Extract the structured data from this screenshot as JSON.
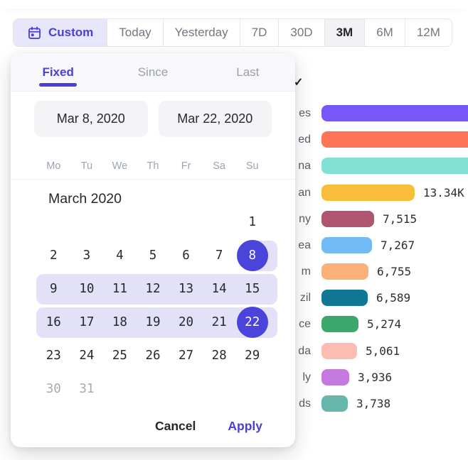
{
  "toolbar": {
    "buttons": [
      {
        "id": "custom",
        "label": "Custom",
        "icon": "calendar-icon",
        "state": "active-custom"
      },
      {
        "id": "today",
        "label": "Today"
      },
      {
        "id": "yesterday",
        "label": "Yesterday"
      },
      {
        "id": "7d",
        "label": "7D"
      },
      {
        "id": "30d",
        "label": "30D"
      },
      {
        "id": "3m",
        "label": "3M",
        "state": "selected"
      },
      {
        "id": "6m",
        "label": "6M"
      },
      {
        "id": "12m",
        "label": "12M"
      }
    ]
  },
  "datepicker": {
    "tabs": [
      {
        "id": "fixed",
        "label": "Fixed",
        "active": true
      },
      {
        "id": "since",
        "label": "Since",
        "active": false
      },
      {
        "id": "last",
        "label": "Last",
        "active": false
      }
    ],
    "start_date": "Mar 8, 2020",
    "end_date": "Mar 22, 2020",
    "weekdays": [
      "Mo",
      "Tu",
      "We",
      "Th",
      "Fr",
      "Sa",
      "Su"
    ],
    "month_label": "March 2020",
    "weeks": [
      [
        null,
        null,
        null,
        null,
        null,
        null,
        1
      ],
      [
        2,
        3,
        4,
        5,
        6,
        7,
        8
      ],
      [
        9,
        10,
        11,
        12,
        13,
        14,
        15
      ],
      [
        16,
        17,
        18,
        19,
        20,
        21,
        22
      ],
      [
        23,
        24,
        25,
        26,
        27,
        28,
        29
      ],
      [
        30,
        31,
        null,
        null,
        null,
        null,
        null
      ]
    ],
    "range_start": 8,
    "range_end": 22,
    "muted_days": [
      30,
      31
    ],
    "cancel_label": "Cancel",
    "apply_label": "Apply"
  },
  "background": {
    "menu_checkmark": "✓"
  },
  "chart_data": {
    "type": "bar",
    "orientation": "horizontal",
    "note_axis": "values in visitors; top three bars run past the right edge of the viewport and their labels are hidden behind the popup",
    "rows": [
      {
        "label_fragment": "es",
        "value": null,
        "value_label": "",
        "color": "#7857f8",
        "clipped": true
      },
      {
        "label_fragment": "ed",
        "value": null,
        "value_label": "",
        "color": "#fd7556",
        "clipped": true
      },
      {
        "label_fragment": "na",
        "value": null,
        "value_label": "",
        "color": "#7fe0d3",
        "clipped": true
      },
      {
        "label_fragment": "an",
        "value": 13340,
        "value_label": "13.34K",
        "color": "#f7bd3d",
        "clipped": false
      },
      {
        "label_fragment": "ny",
        "value": 7515,
        "value_label": "7,515",
        "color": "#af5570",
        "clipped": false
      },
      {
        "label_fragment": "ea",
        "value": 7267,
        "value_label": "7,267",
        "color": "#70bbf4",
        "clipped": false
      },
      {
        "label_fragment": "m",
        "value": 6755,
        "value_label": "6,755",
        "color": "#fbb077",
        "clipped": false
      },
      {
        "label_fragment": "zil",
        "value": 6589,
        "value_label": "6,589",
        "color": "#107795",
        "clipped": false
      },
      {
        "label_fragment": "ce",
        "value": 5274,
        "value_label": "5,274",
        "color": "#3ca76a",
        "clipped": false
      },
      {
        "label_fragment": "da",
        "value": 5061,
        "value_label": "5,061",
        "color": "#fcbcb2",
        "clipped": false
      },
      {
        "label_fragment": "ly",
        "value": 3936,
        "value_label": "3,936",
        "color": "#c57adf",
        "clipped": false
      },
      {
        "label_fragment": "ds",
        "value": 3738,
        "value_label": "3,738",
        "color": "#64b7a9",
        "clipped": false
      }
    ]
  },
  "colors": {
    "accent_text": "#4a40d4",
    "selected_circle": "#4b44db",
    "range_pill": "#e3e1f8",
    "custom_button_bg": "#e8e6fb",
    "selected_segment_bg": "#f2f2f4",
    "input_bg": "#f4f4f6"
  }
}
